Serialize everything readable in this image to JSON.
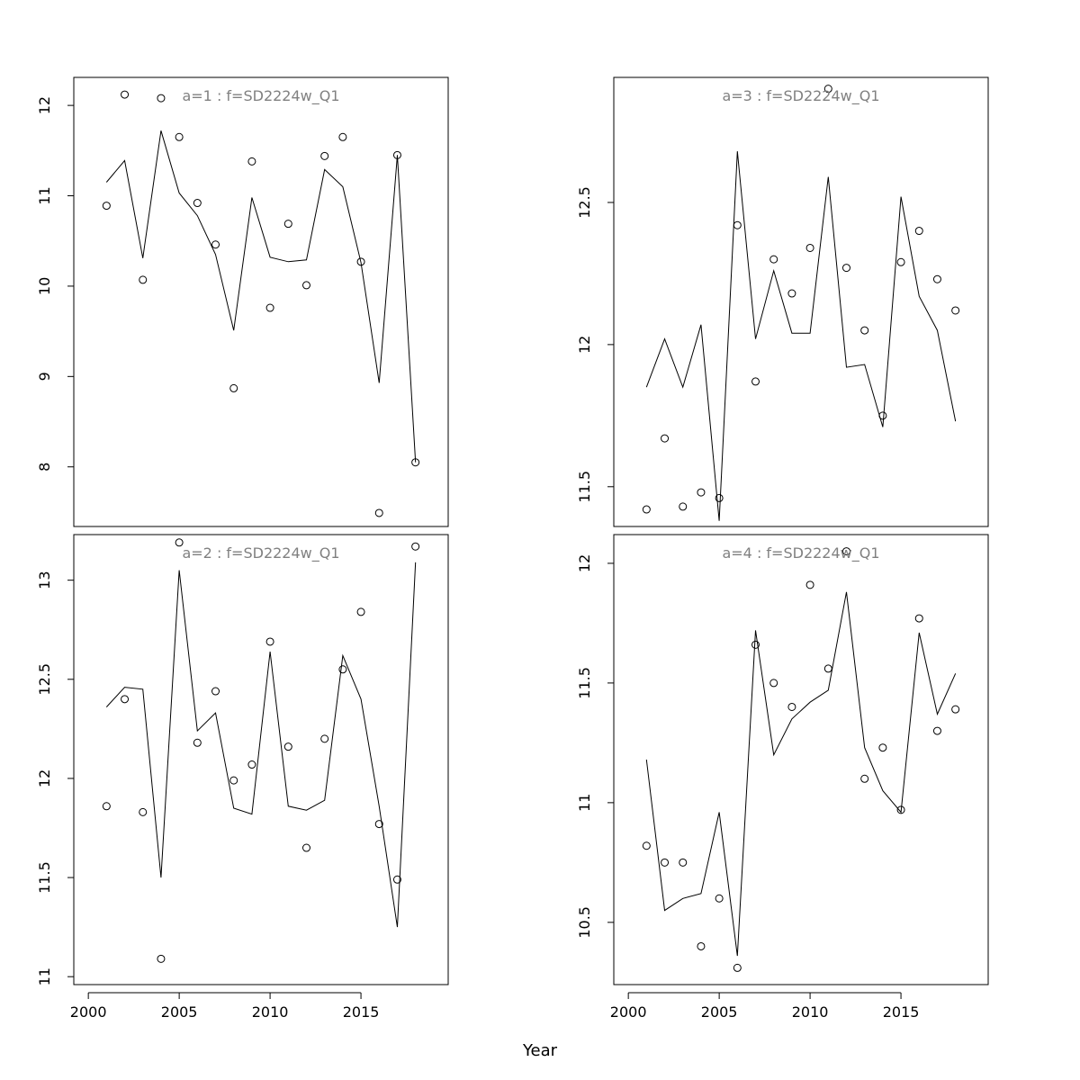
{
  "chart_data": {
    "type": "scatter",
    "xlabel": "Year",
    "xlim": [
      1999.2,
      2019.8
    ],
    "xticks": [
      2000,
      2005,
      2010,
      2015
    ],
    "years": [
      2001,
      2002,
      2003,
      2004,
      2005,
      2006,
      2007,
      2008,
      2009,
      2010,
      2011,
      2012,
      2013,
      2014,
      2015,
      2016,
      2017,
      2018
    ],
    "panels": [
      {
        "id": "a1",
        "title": "a=1  :  f=SD2224w_Q1",
        "ylim": [
          7.34,
          12.31
        ],
        "yticks": [
          8,
          9,
          10,
          11,
          12
        ],
        "observed": [
          10.89,
          12.12,
          10.07,
          12.08,
          11.65,
          10.92,
          10.46,
          8.87,
          11.38,
          9.76,
          10.69,
          10.01,
          11.44,
          11.65,
          10.27,
          7.49,
          11.45,
          8.05
        ],
        "fitted": [
          11.15,
          11.39,
          10.31,
          11.72,
          11.03,
          10.78,
          10.35,
          9.51,
          10.98,
          10.32,
          10.27,
          10.29,
          11.29,
          11.1,
          10.26,
          8.93,
          11.45,
          8.05
        ]
      },
      {
        "id": "a3",
        "title": "a=3  :  f=SD2224w_Q1",
        "ylim": [
          11.36,
          12.94
        ],
        "yticks": [
          11.5,
          12.0,
          12.5
        ],
        "observed": [
          11.42,
          11.67,
          11.43,
          11.48,
          11.46,
          12.42,
          11.87,
          12.3,
          12.18,
          12.34,
          12.9,
          12.27,
          12.05,
          11.75,
          12.29,
          12.4,
          12.23,
          12.12
        ],
        "fitted": [
          11.85,
          12.02,
          11.85,
          12.07,
          11.38,
          12.68,
          12.02,
          12.26,
          12.04,
          12.04,
          12.59,
          11.92,
          11.93,
          11.71,
          12.52,
          12.17,
          12.05,
          11.73
        ]
      },
      {
        "id": "a2",
        "title": "a=2  :  f=SD2224w_Q1",
        "ylim": [
          10.96,
          13.23
        ],
        "yticks": [
          11.0,
          11.5,
          12.0,
          12.5,
          13.0
        ],
        "observed": [
          11.86,
          12.4,
          11.83,
          11.09,
          13.19,
          12.18,
          12.44,
          11.99,
          12.07,
          12.69,
          12.16,
          11.65,
          12.2,
          12.55,
          12.84,
          11.77,
          11.49,
          13.17
        ],
        "fitted": [
          12.36,
          12.46,
          12.45,
          11.5,
          13.05,
          12.24,
          12.33,
          11.85,
          11.82,
          12.64,
          11.86,
          11.84,
          11.89,
          12.62,
          12.4,
          11.86,
          11.25,
          13.09
        ]
      },
      {
        "id": "a4",
        "title": "a=4  :  f=SD2224w_Q1",
        "ylim": [
          10.24,
          12.12
        ],
        "yticks": [
          10.5,
          11.0,
          11.5,
          12.0
        ],
        "observed": [
          10.82,
          10.75,
          10.75,
          10.4,
          10.6,
          10.31,
          11.66,
          11.5,
          11.4,
          11.91,
          11.56,
          12.05,
          11.1,
          11.23,
          10.97,
          11.77,
          11.3,
          11.39
        ],
        "fitted": [
          11.18,
          10.55,
          10.6,
          10.62,
          10.96,
          10.36,
          11.72,
          11.2,
          11.35,
          11.42,
          11.47,
          11.88,
          11.23,
          11.05,
          10.96,
          11.71,
          11.37,
          11.54
        ]
      }
    ]
  }
}
